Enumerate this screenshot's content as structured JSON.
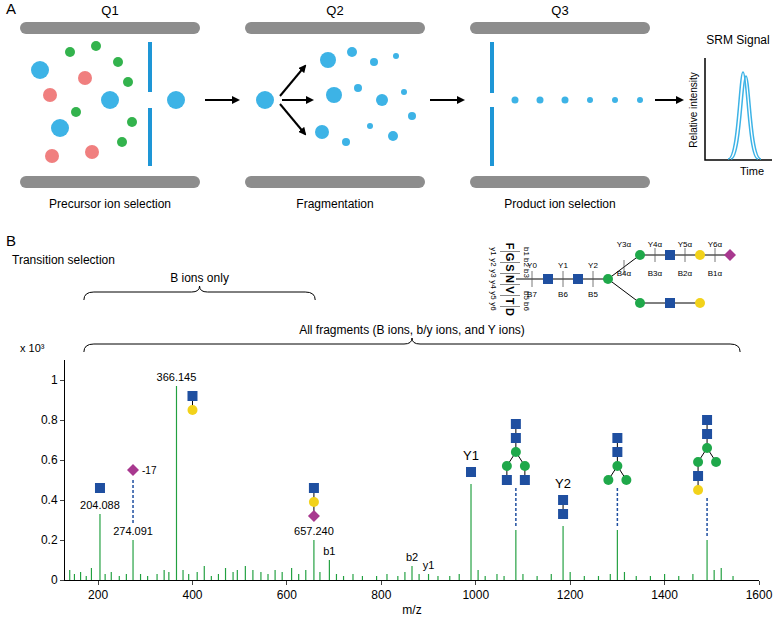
{
  "diagram": {
    "label": "A",
    "stages": [
      {
        "title": "Q1",
        "caption": "Precursor ion selection"
      },
      {
        "title": "Q2",
        "caption": "Fragmentation"
      },
      {
        "title": "Q3",
        "caption": "Product ion selection"
      }
    ],
    "signal": {
      "title": "SRM Signal",
      "y_label": "Relative intensity",
      "x_label": "Time"
    }
  },
  "structure": {
    "label": "B",
    "title": "Transition selection",
    "peptide": [
      "F",
      "G",
      "S",
      "N",
      "V",
      "T",
      "D"
    ],
    "b_ions": [
      "b1",
      "b2",
      "b3",
      null,
      "b5",
      "b6"
    ],
    "y_ions": [
      "y1",
      "y2",
      "y3",
      "y4",
      "y5",
      "y6"
    ],
    "core_ions": [
      {
        "above": "Y0",
        "below": "B7"
      },
      {
        "above": "Y1",
        "below": "B6"
      },
      {
        "above": "Y2",
        "below": "B5"
      }
    ],
    "branch_ions": [
      {
        "above": "Y3α",
        "below": "B4α"
      },
      {
        "above": "Y4α",
        "below": "B3α"
      },
      {
        "above": "Y5α",
        "below": "B2α"
      },
      {
        "above": "Y6α",
        "below": "B1α"
      }
    ]
  },
  "chart_data": {
    "type": "bar",
    "x_label": "m/z",
    "y_scale_label": "x 10³",
    "color": "#22a040",
    "x": [
      140,
      150,
      163,
      175,
      186,
      204.088,
      215,
      228,
      245,
      260,
      274.091,
      290,
      305,
      325,
      340,
      350,
      366.145,
      380,
      392,
      410,
      425,
      440,
      455,
      470,
      486,
      495,
      512,
      528,
      545,
      560,
      575,
      590,
      610,
      625,
      640,
      657.24,
      670,
      690,
      705,
      720,
      740,
      760,
      790,
      812,
      835,
      850,
      865,
      880,
      900,
      920,
      945,
      965,
      990,
      1005,
      1020,
      1045,
      1060,
      1085,
      1100,
      1130,
      1160,
      1185,
      1200,
      1230,
      1260,
      1285,
      1300,
      1315,
      1340,
      1370,
      1400,
      1430,
      1460,
      1490,
      1505,
      1520,
      1545
    ],
    "values": [
      0.05,
      0.03,
      0.04,
      0.02,
      0.06,
      0.33,
      0.03,
      0.04,
      0.02,
      0.03,
      0.2,
      0.03,
      0.02,
      0.03,
      0.05,
      0.04,
      0.97,
      0.05,
      0.03,
      0.04,
      0.07,
      0.02,
      0.03,
      0.06,
      0.04,
      0.05,
      0.07,
      0.05,
      0.04,
      0.03,
      0.05,
      0.04,
      0.06,
      0.03,
      0.05,
      0.2,
      0.04,
      0.1,
      0.03,
      0.02,
      0.03,
      0.02,
      0.02,
      0.03,
      0.02,
      0.04,
      0.07,
      0.03,
      0.03,
      0.02,
      0.02,
      0.03,
      0.48,
      0.05,
      0.02,
      0.03,
      0.02,
      0.25,
      0.03,
      0.02,
      0.03,
      0.27,
      0.04,
      0.02,
      0.02,
      0.03,
      0.25,
      0.04,
      0.02,
      0.02,
      0.03,
      0.02,
      0.03,
      0.2,
      0.05,
      0.06,
      0.02
    ],
    "xlim": [
      130,
      1600
    ],
    "xticks": [
      200,
      400,
      600,
      800,
      1000,
      1200,
      1400,
      1600
    ],
    "ylim": [
      0,
      1.1
    ],
    "yticks": [
      0,
      0.2,
      0.4,
      0.6,
      0.8,
      1
    ],
    "annotations": [
      {
        "x": 204.088,
        "text": "204.088"
      },
      {
        "x": 274.091,
        "text": "274.091",
        "note": "-17"
      },
      {
        "x": 366.145,
        "text": "366.145"
      },
      {
        "x": 657.24,
        "text": "657.240"
      },
      {
        "x": 690,
        "text": "b1"
      },
      {
        "x": 865,
        "text": "b2"
      },
      {
        "x": 900,
        "text": "y1"
      },
      {
        "x": 990,
        "text": "Y1"
      },
      {
        "x": 1085
      },
      {
        "x": 1185,
        "text": "Y2"
      },
      {
        "x": 1300
      },
      {
        "x": 1490
      }
    ],
    "brackets": [
      {
        "text": "B ions only",
        "from": 170,
        "to": 660
      },
      {
        "text": "All fragments (B ions, b/y ions, and Y ions)",
        "from": 170,
        "to": 1560
      }
    ]
  }
}
